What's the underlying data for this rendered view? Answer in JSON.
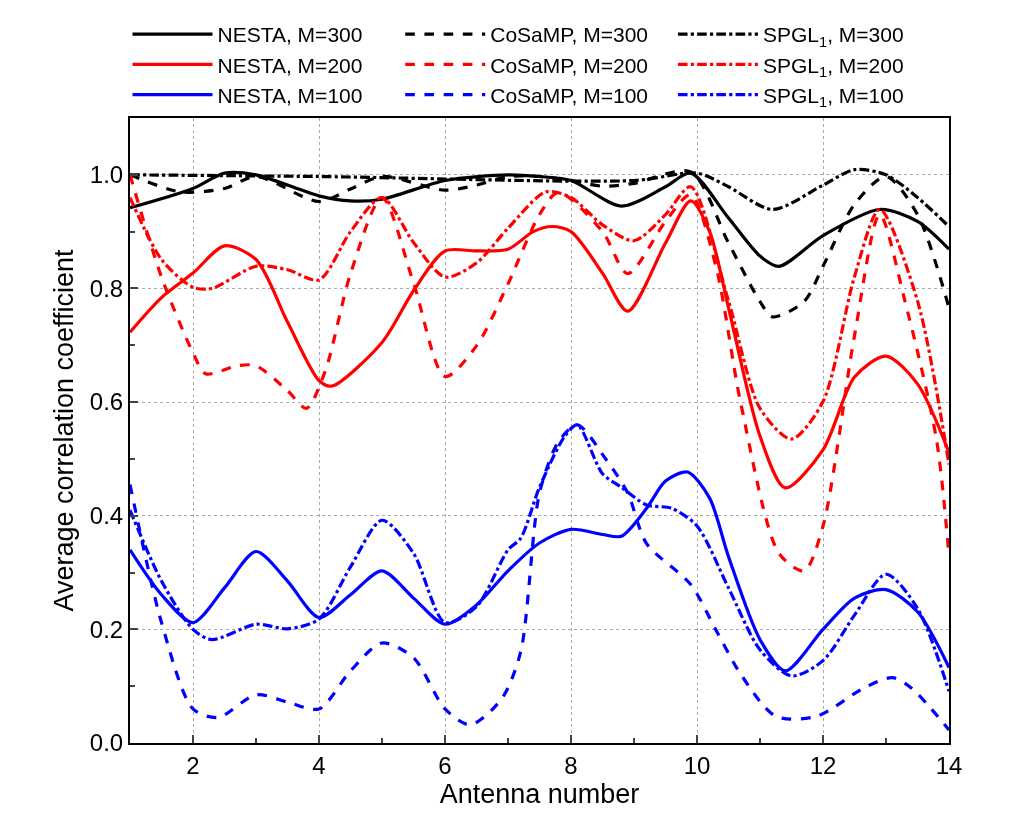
{
  "chart_data": {
    "type": "line",
    "xlabel": "Antenna number",
    "ylabel": "Average correlation coefficient",
    "xlim": [
      1,
      14
    ],
    "ylim": [
      0,
      1.1
    ],
    "xticks": [
      2,
      4,
      6,
      8,
      10,
      12,
      14
    ],
    "yticks": [
      {
        "value": 0,
        "label": "0.0"
      },
      {
        "value": 0.2,
        "label": "0.2"
      },
      {
        "value": 0.4,
        "label": "0.4"
      },
      {
        "value": 0.6,
        "label": "0.6"
      },
      {
        "value": 0.8,
        "label": "0.8"
      },
      {
        "value": 1.0,
        "label": "1.0"
      }
    ],
    "grid": true,
    "legend": "top",
    "marker": "none",
    "series": [
      {
        "name": "NESTA, M=300",
        "color": "#000000",
        "line_style": "solid",
        "x": [
          1,
          2,
          2.5,
          3,
          4,
          4.5,
          5,
          6,
          7,
          7.5,
          8,
          8.8,
          9.5,
          9.9,
          10.5,
          11,
          11.3,
          12,
          12.9,
          13.5,
          14
        ],
        "values": [
          0.942,
          0.976,
          1.003,
          1.0,
          0.963,
          0.954,
          0.957,
          0.99,
          1.0,
          0.997,
          0.99,
          0.945,
          0.979,
          1.003,
          0.924,
          0.857,
          0.839,
          0.893,
          0.939,
          0.918,
          0.869
        ]
      },
      {
        "name": "CoSaMP, M=300",
        "color": "#000000",
        "line_style": "dashed",
        "x": [
          1,
          1.8,
          2.5,
          3,
          4,
          4.5,
          5,
          6,
          6.5,
          7,
          7.5,
          8,
          8.5,
          9,
          9.9,
          10.5,
          11,
          11.2,
          11.7,
          12,
          12.5,
          13,
          13.5,
          14
        ],
        "values": [
          1.0,
          0.97,
          0.976,
          0.997,
          0.953,
          0.975,
          0.997,
          0.973,
          0.982,
          0.997,
          0.997,
          0.99,
          0.98,
          0.985,
          1.005,
          0.88,
          0.777,
          0.75,
          0.777,
          0.839,
          0.948,
          0.997,
          0.93,
          0.766
        ]
      },
      {
        "name": "SPGL$_{1}$, M=300",
        "color": "#000000",
        "line_style": "dashdot",
        "x": [
          1,
          4,
          9,
          10,
          10.5,
          11.2,
          12,
          12.5,
          13,
          13.5,
          14
        ],
        "values": [
          1.0,
          0.997,
          0.99,
          1.003,
          0.979,
          0.939,
          0.982,
          1.009,
          1.0,
          0.96,
          0.909
        ]
      },
      {
        "name": "NESTA, M=200",
        "color": "#ff0000",
        "line_style": "solid",
        "x": [
          1,
          1.5,
          2,
          2.5,
          3,
          3.5,
          4,
          4.2,
          5,
          5.5,
          6,
          6.5,
          7,
          7.4,
          7.7,
          8,
          8.5,
          8.9,
          9.5,
          9.9,
          10.2,
          10.5,
          11,
          11.4,
          12,
          12.5,
          13,
          13.5,
          14
        ],
        "values": [
          0.723,
          0.784,
          0.827,
          0.875,
          0.851,
          0.741,
          0.638,
          0.628,
          0.705,
          0.796,
          0.866,
          0.866,
          0.869,
          0.9,
          0.909,
          0.9,
          0.827,
          0.76,
          0.88,
          0.954,
          0.9,
          0.766,
          0.54,
          0.449,
          0.516,
          0.644,
          0.681,
          0.632,
          0.511
        ]
      },
      {
        "name": "CoSaMP, M=200",
        "color": "#ff0000",
        "line_style": "dashed",
        "x": [
          1,
          1.5,
          2,
          2.2,
          2.7,
          3,
          3.5,
          3.8,
          4.1,
          4.5,
          5,
          5.5,
          6,
          6.5,
          7,
          7.5,
          7.8,
          8.5,
          8.9,
          9.5,
          9.9,
          10.3,
          10.7,
          11.3,
          11.7,
          12,
          12.5,
          12.9,
          13.3,
          13.8,
          14
        ],
        "values": [
          1.0,
          0.82,
          0.687,
          0.65,
          0.664,
          0.664,
          0.62,
          0.589,
          0.655,
          0.826,
          0.96,
          0.81,
          0.645,
          0.699,
          0.808,
          0.93,
          0.969,
          0.9,
          0.826,
          0.918,
          0.965,
          0.839,
          0.595,
          0.334,
          0.303,
          0.382,
          0.717,
          0.93,
          0.778,
          0.535,
          0.328
        ]
      },
      {
        "name": "SPGL$_{1}$, M=200",
        "color": "#ff0000",
        "line_style": "dashdot",
        "x": [
          1,
          1.5,
          2,
          2.3,
          3,
          3.5,
          4,
          4.5,
          5,
          5.5,
          6,
          6.5,
          7,
          7.6,
          8,
          8.5,
          9,
          9.5,
          9.9,
          10.5,
          11,
          11.5,
          12,
          12.5,
          12.9,
          13.5,
          14
        ],
        "values": [
          0.96,
          0.851,
          0.802,
          0.8,
          0.839,
          0.833,
          0.815,
          0.9,
          0.96,
          0.881,
          0.82,
          0.845,
          0.906,
          0.97,
          0.96,
          0.912,
          0.884,
          0.93,
          0.979,
          0.778,
          0.589,
          0.535,
          0.601,
          0.821,
          0.939,
          0.778,
          0.49
        ]
      },
      {
        "name": "NESTA, M=100",
        "color": "#0000ff",
        "line_style": "solid",
        "x": [
          1,
          1.5,
          2,
          2.5,
          3,
          3.5,
          4,
          4.5,
          5,
          5.5,
          6,
          6.5,
          7,
          7.5,
          8,
          8.5,
          8.8,
          9.2,
          9.5,
          9.85,
          10.2,
          10.5,
          11,
          11.4,
          12,
          12.5,
          13,
          13.5,
          14
        ],
        "values": [
          0.34,
          0.261,
          0.212,
          0.273,
          0.337,
          0.285,
          0.221,
          0.261,
          0.303,
          0.255,
          0.209,
          0.243,
          0.303,
          0.352,
          0.376,
          0.367,
          0.364,
          0.413,
          0.461,
          0.477,
          0.431,
          0.328,
          0.182,
          0.127,
          0.2,
          0.255,
          0.27,
          0.231,
          0.133
        ]
      },
      {
        "name": "CoSaMP, M=100",
        "color": "#0000ff",
        "line_style": "dashed",
        "x": [
          1,
          1.5,
          2,
          2.4,
          3,
          3.5,
          4,
          4.5,
          5,
          5.5,
          6,
          6.4,
          6.9,
          7.2,
          7.5,
          7.8,
          8.1,
          8.55,
          8.9,
          9.2,
          9.9,
          10.3,
          10.7,
          11.25,
          11.9,
          12.65,
          13.1,
          13.4,
          14
        ],
        "values": [
          0.455,
          0.212,
          0.06,
          0.045,
          0.085,
          0.072,
          0.06,
          0.127,
          0.176,
          0.15,
          0.06,
          0.032,
          0.078,
          0.16,
          0.44,
          0.53,
          0.56,
          0.5,
          0.44,
          0.351,
          0.279,
          0.199,
          0.12,
          0.047,
          0.047,
          0.097,
          0.115,
          0.097,
          0.023
        ]
      },
      {
        "name": "SPGL$_{1}$, M=100",
        "color": "#0000ff",
        "line_style": "dashdot",
        "x": [
          1,
          1.5,
          2,
          2.3,
          3,
          3.5,
          4,
          4.5,
          5,
          5.5,
          6,
          6.5,
          7,
          7.2,
          7.5,
          7.9,
          8.1,
          8.5,
          8.8,
          9.2,
          9.6,
          10,
          10.5,
          11,
          11.5,
          12,
          12.5,
          13,
          13.5,
          14
        ],
        "values": [
          0.41,
          0.285,
          0.2,
          0.182,
          0.209,
          0.201,
          0.218,
          0.31,
          0.392,
          0.334,
          0.212,
          0.24,
          0.34,
          0.36,
          0.45,
          0.54,
          0.56,
          0.474,
          0.45,
          0.419,
          0.413,
          0.382,
          0.273,
          0.164,
          0.118,
          0.145,
          0.225,
          0.297,
          0.237,
          0.091
        ]
      }
    ]
  }
}
